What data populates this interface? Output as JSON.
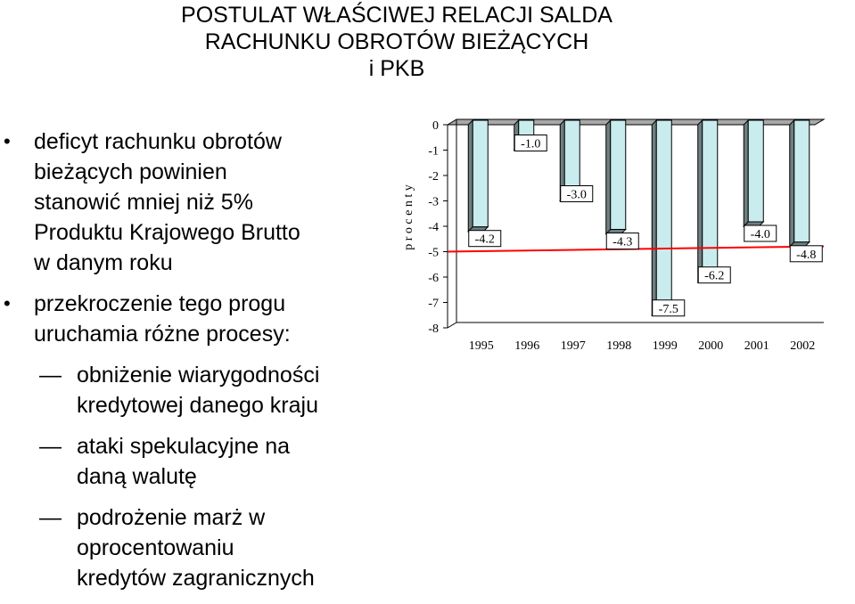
{
  "title": {
    "line1": "POSTULAT WŁAŚCIWEJ RELACJI SALDA",
    "line2": "RACHUNKU OBROTÓW BIEŻĄCYCH",
    "line3": "i PKB"
  },
  "bullets": [
    {
      "lines": [
        "deficyt rachunku obrotów",
        "bieżących powinien",
        "stanowić mniej niż 5%",
        "Produktu Krajowego Brutto",
        "w danym roku"
      ]
    },
    {
      "lines": [
        "przekroczenie tego progu",
        "uruchamia różne procesy:"
      ]
    }
  ],
  "subbullets": [
    {
      "lines": [
        "obniżenie wiarygodności",
        "kredytowej danego kraju"
      ]
    },
    {
      "lines": [
        "ataki spekulacyjne na",
        "daną walutę"
      ]
    },
    {
      "lines": [
        "podrożenie marż w",
        "oprocentowaniu",
        "kredytów zagranicznych"
      ]
    }
  ],
  "bullet_glyph": "•",
  "dash_glyph": "—",
  "chart_data": {
    "type": "bar",
    "categories": [
      "1995",
      "1996",
      "1997",
      "1998",
      "1999",
      "2000",
      "2001",
      "2002"
    ],
    "values": [
      -4.2,
      -1.0,
      -3.0,
      -4.3,
      -7.5,
      -6.2,
      -4.0,
      -4.8
    ],
    "labels": [
      "-4.2",
      "-1.0",
      "-3.0",
      "-4.3",
      "-7.5",
      "-6.2",
      "-4.0",
      "-4.8"
    ],
    "ylabel": "p r o c e n t y",
    "yticks": [
      "0",
      "-1",
      "-2",
      "-3",
      "-4",
      "-5",
      "-6",
      "-7",
      "-8"
    ],
    "ylim": [
      -8,
      0
    ],
    "threshold": -5,
    "colors": {
      "bar": "#c9ecee",
      "bar_side": "#6e7f80",
      "floor": "#a8a8a8",
      "threshold": "#ff0000"
    }
  }
}
